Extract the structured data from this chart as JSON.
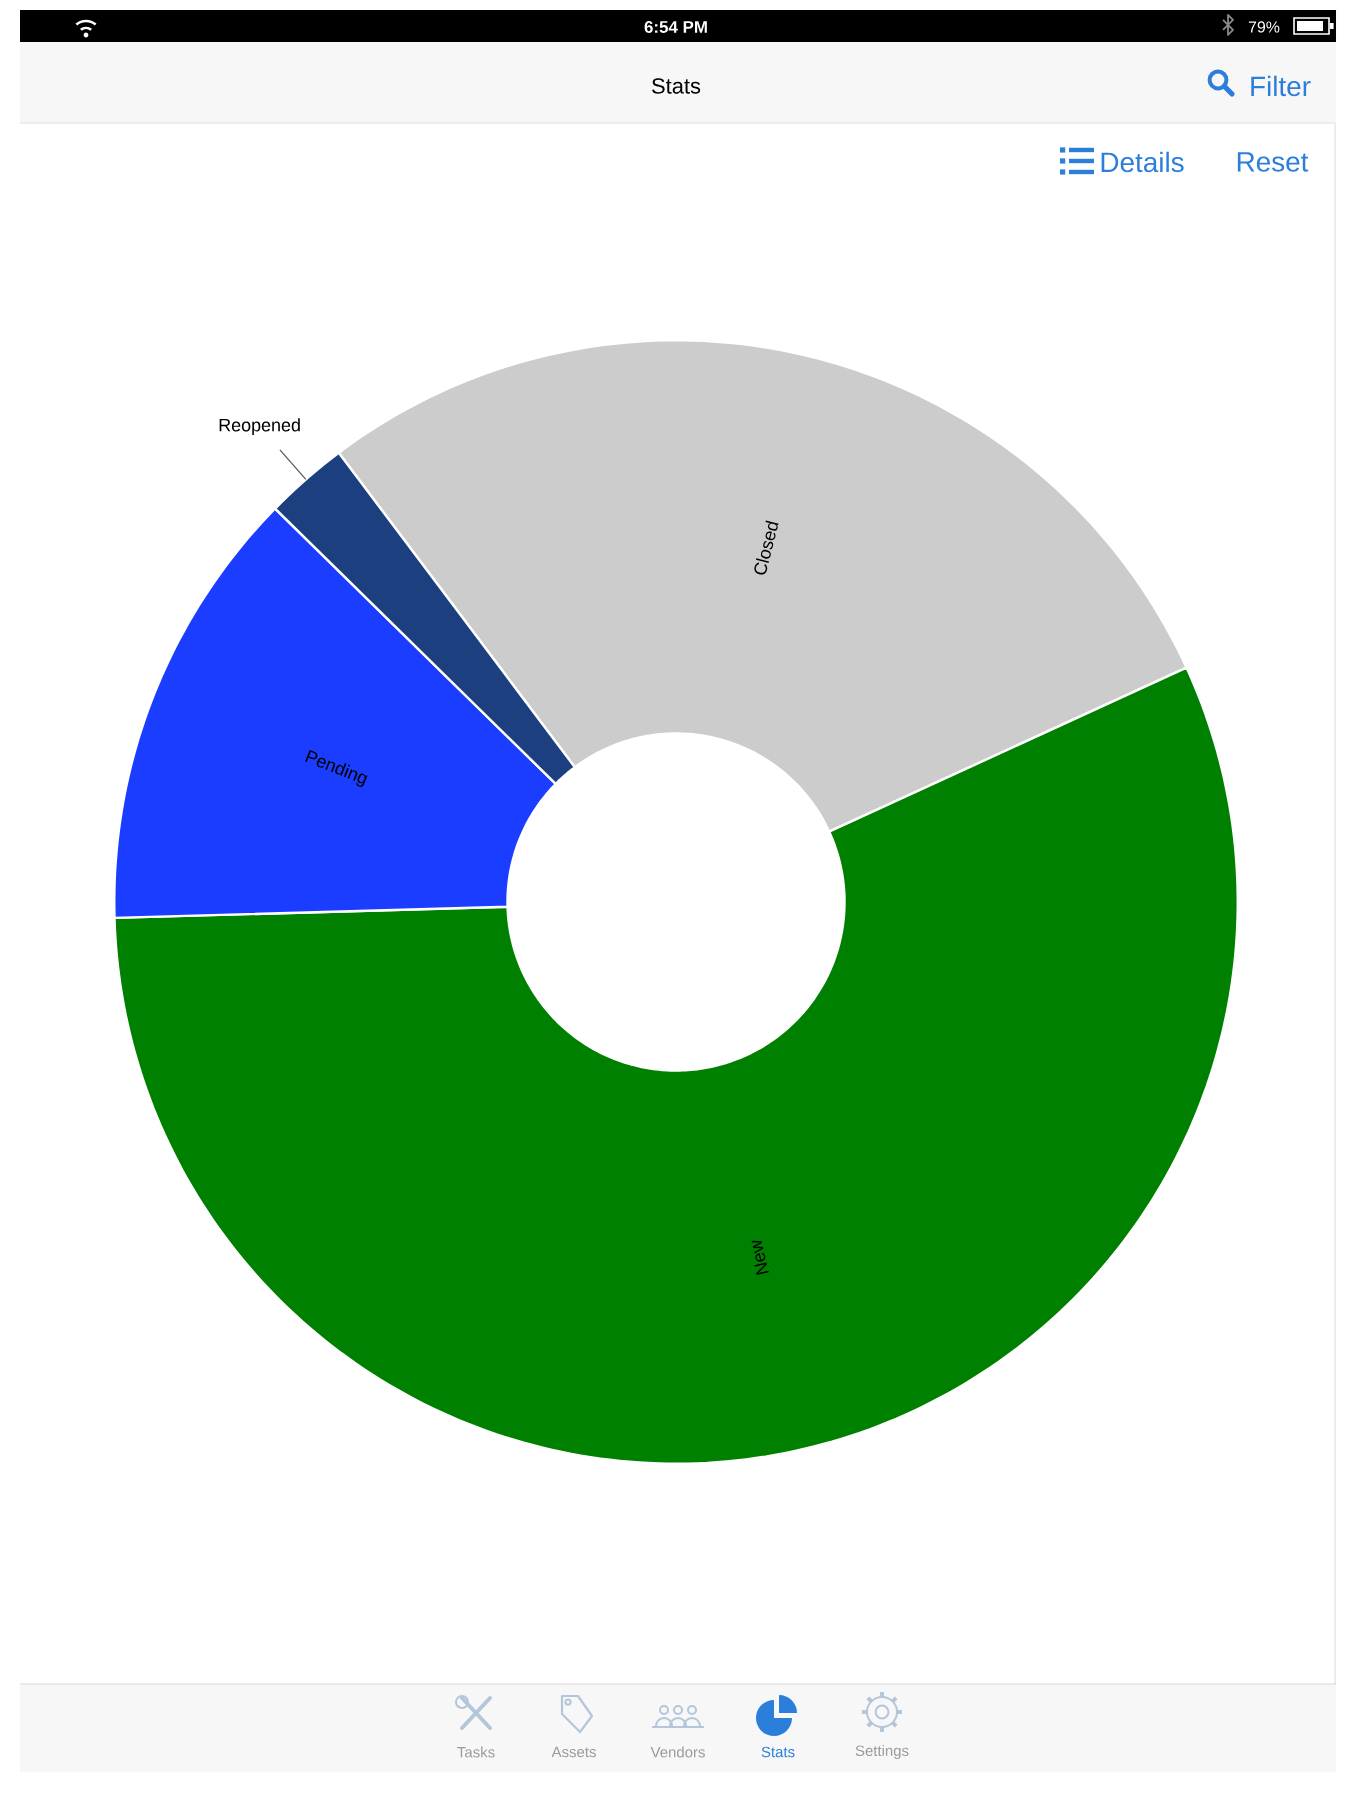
{
  "chart_data": {
    "type": "donut",
    "title": "Stats",
    "categories": [
      "Closed",
      "New",
      "Pending",
      "Reopened"
    ],
    "values": [
      28.4,
      56.4,
      12.8,
      2.4
    ],
    "colors": [
      "#cccccc",
      "#008000",
      "#1a3dff",
      "#1b3f7f"
    ],
    "annotations": [
      "6:54 PM",
      "79%",
      "Filter",
      "Details",
      "Reset",
      "Tasks",
      "Assets",
      "Vendors",
      "Stats",
      "Settings"
    ]
  }
}
